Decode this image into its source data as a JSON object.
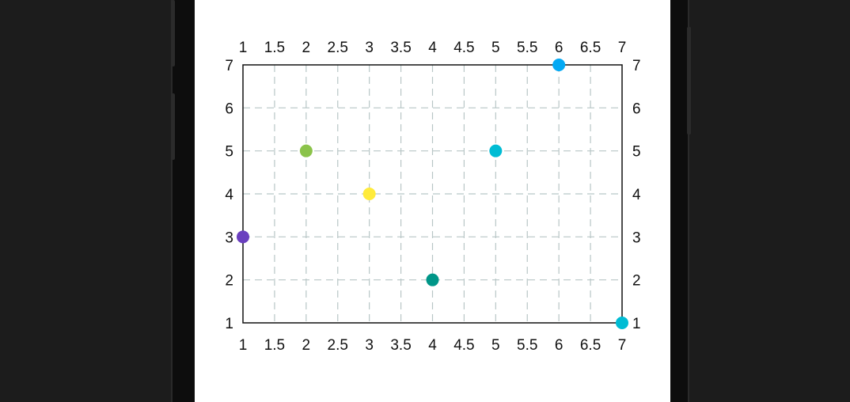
{
  "chart_data": {
    "type": "scatter",
    "title": "",
    "xlabel": "",
    "ylabel": "",
    "xlim": [
      1,
      7
    ],
    "ylim": [
      1,
      7
    ],
    "x_ticks": [
      "1",
      "1.5",
      "2",
      "2.5",
      "3",
      "3.5",
      "4",
      "4.5",
      "5",
      "5.5",
      "6",
      "6.5",
      "7"
    ],
    "y_ticks": [
      "1",
      "2",
      "3",
      "4",
      "5",
      "6",
      "7"
    ],
    "x_tick_values": [
      1,
      1.5,
      2,
      2.5,
      3,
      3.5,
      4,
      4.5,
      5,
      5.5,
      6,
      6.5,
      7
    ],
    "y_tick_values": [
      1,
      2,
      3,
      4,
      5,
      6,
      7
    ],
    "axes_on_all_sides": true,
    "grid": true,
    "grid_style": "dashed",
    "grid_color": "#b8c6c6",
    "points": [
      {
        "x": 1,
        "y": 3,
        "color": "#6a3fbf"
      },
      {
        "x": 2,
        "y": 5,
        "color": "#8bc34a"
      },
      {
        "x": 3,
        "y": 4,
        "color": "#ffeb3b"
      },
      {
        "x": 4,
        "y": 2,
        "color": "#009688"
      },
      {
        "x": 5,
        "y": 5,
        "color": "#00bcd4"
      },
      {
        "x": 6,
        "y": 7,
        "color": "#03a9f4"
      },
      {
        "x": 7,
        "y": 1,
        "color": "#00bcd4"
      }
    ]
  }
}
